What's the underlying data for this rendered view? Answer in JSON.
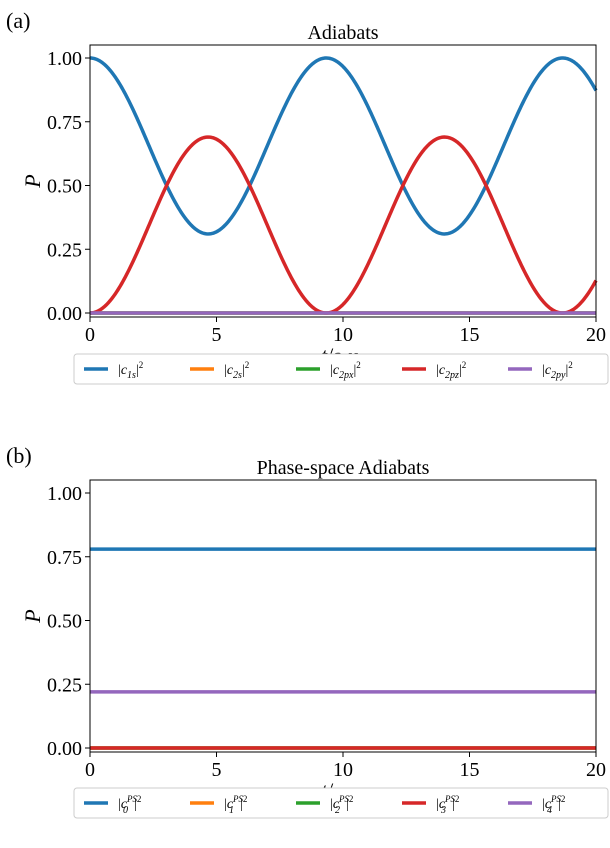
{
  "chart_data": [
    {
      "type": "line",
      "panel_label": "(a)",
      "title": "Adiabats",
      "xlabel": "t",
      "xlabel_unit": "/a.u.",
      "ylabel": "P",
      "xlim": [
        0,
        20
      ],
      "ylim": [
        0,
        1.0
      ],
      "x_ticks": [
        0,
        5,
        10,
        15,
        20
      ],
      "y_ticks": [
        0.0,
        0.25,
        0.5,
        0.75,
        1.0
      ],
      "x_tick_labels": [
        "0",
        "5",
        "10",
        "15",
        "20"
      ],
      "y_tick_labels": [
        "0.00",
        "0.25",
        "0.50",
        "0.75",
        "1.00"
      ],
      "grid": false,
      "legend_placement": "below",
      "model": "oscillation",
      "amplitude": 0.69,
      "period": 9.34,
      "series": [
        {
          "name": "1s",
          "label_main": "|c",
          "label_sub": "1s",
          "label_sup": "",
          "label_tail": "|2",
          "color": "#1f77b4",
          "role": "one_minus"
        },
        {
          "name": "2s",
          "label_main": "|c",
          "label_sub": "2s",
          "label_sup": "",
          "label_tail": "|2",
          "color": "#ff7f0e",
          "role": "zero"
        },
        {
          "name": "2px",
          "label_main": "|c",
          "label_sub": "2px",
          "label_sup": "",
          "label_tail": "|2",
          "color": "#2ca02c",
          "role": "zero"
        },
        {
          "name": "2pz",
          "label_main": "|c",
          "label_sub": "2pz",
          "label_sup": "",
          "label_tail": "|2",
          "color": "#d62728",
          "role": "osc"
        },
        {
          "name": "2py",
          "label_main": "|c",
          "label_sub": "2py",
          "label_sup": "",
          "label_tail": "|2",
          "color": "#9467bd",
          "role": "zero"
        }
      ]
    },
    {
      "type": "line",
      "panel_label": "(b)",
      "title": "Phase-space Adiabats",
      "xlabel": "t",
      "xlabel_unit": "/a.u.",
      "ylabel": "P",
      "xlim": [
        0,
        20
      ],
      "ylim": [
        0,
        1.0
      ],
      "x_ticks": [
        0,
        5,
        10,
        15,
        20
      ],
      "y_ticks": [
        0.0,
        0.25,
        0.5,
        0.75,
        1.0
      ],
      "x_tick_labels": [
        "0",
        "5",
        "10",
        "15",
        "20"
      ],
      "y_tick_labels": [
        "0.00",
        "0.25",
        "0.50",
        "0.75",
        "1.00"
      ],
      "grid": false,
      "legend_placement": "below",
      "model": "constant",
      "series": [
        {
          "name": "PS0",
          "label_main": "|c",
          "label_sub": "0",
          "label_sup": "PS",
          "label_tail": "|2",
          "color": "#1f77b4",
          "value": 0.78
        },
        {
          "name": "PS1",
          "label_main": "|c",
          "label_sub": "1",
          "label_sup": "PS",
          "label_tail": "|2",
          "color": "#ff7f0e",
          "value": 0.0
        },
        {
          "name": "PS2",
          "label_main": "|c",
          "label_sub": "2",
          "label_sup": "PS",
          "label_tail": "|2",
          "color": "#2ca02c",
          "value": 0.0
        },
        {
          "name": "PS3",
          "label_main": "|c",
          "label_sub": "3",
          "label_sup": "PS",
          "label_tail": "|2",
          "color": "#d62728",
          "value": 0.0
        },
        {
          "name": "PS4",
          "label_main": "|c",
          "label_sub": "4",
          "label_sup": "PS",
          "label_tail": "|2",
          "color": "#9467bd",
          "value": 0.22
        }
      ]
    }
  ]
}
